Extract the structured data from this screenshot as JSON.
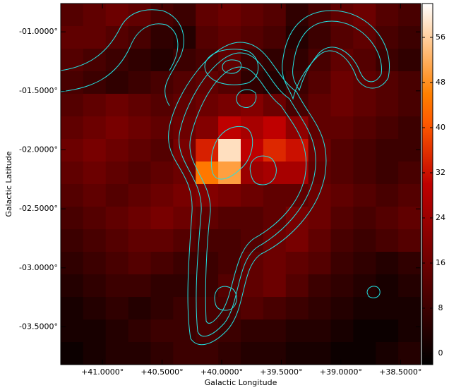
{
  "chart_data": {
    "type": "heatmap",
    "xlabel": "Galactic Longitude",
    "ylabel": "Galactic Latitude",
    "xlim": [
      41.35,
      38.33
    ],
    "ylim": [
      -3.82,
      -0.76
    ],
    "xticks": [
      {
        "value": 41.0,
        "label": "+41.0000°"
      },
      {
        "value": 40.5,
        "label": "+40.5000°"
      },
      {
        "value": 40.0,
        "label": "+40.0000°"
      },
      {
        "value": 39.5,
        "label": "+39.5000°"
      },
      {
        "value": 39.0,
        "label": "+39.0000°"
      },
      {
        "value": 38.5,
        "label": "+38.5000°"
      }
    ],
    "yticks": [
      {
        "value": -1.0,
        "label": "-01.0000°"
      },
      {
        "value": -1.5,
        "label": "-01.5000°"
      },
      {
        "value": -2.0,
        "label": "-02.0000°"
      },
      {
        "value": -2.5,
        "label": "-02.5000°"
      },
      {
        "value": -3.0,
        "label": "-03.0000°"
      },
      {
        "value": -3.5,
        "label": "-03.5000°"
      }
    ],
    "colormap": "gist_heat",
    "clim": [
      -2,
      62
    ],
    "colorbar_ticks": [
      0,
      8,
      16,
      24,
      32,
      40,
      48,
      56
    ],
    "z": [
      [
        12,
        14,
        16,
        14,
        10,
        8,
        14,
        16,
        14,
        12,
        6,
        10,
        14,
        16,
        12,
        10
      ],
      [
        14,
        14,
        12,
        10,
        6,
        4,
        12,
        14,
        12,
        10,
        4,
        8,
        12,
        14,
        10,
        8
      ],
      [
        12,
        10,
        8,
        6,
        4,
        8,
        10,
        14,
        8,
        6,
        6,
        10,
        14,
        12,
        8,
        6
      ],
      [
        10,
        8,
        6,
        8,
        10,
        12,
        14,
        12,
        6,
        4,
        8,
        12,
        16,
        14,
        12,
        10
      ],
      [
        12,
        14,
        16,
        14,
        12,
        14,
        16,
        18,
        20,
        16,
        10,
        14,
        16,
        14,
        12,
        10
      ],
      [
        14,
        16,
        18,
        16,
        14,
        16,
        20,
        30,
        26,
        30,
        22,
        14,
        14,
        12,
        10,
        8
      ],
      [
        16,
        18,
        16,
        14,
        12,
        18,
        34,
        58,
        30,
        35,
        32,
        16,
        12,
        10,
        8,
        8
      ],
      [
        14,
        16,
        14,
        12,
        14,
        16,
        45,
        50,
        24,
        26,
        26,
        14,
        12,
        10,
        8,
        10
      ],
      [
        12,
        14,
        12,
        14,
        16,
        18,
        20,
        18,
        16,
        14,
        14,
        16,
        14,
        12,
        10,
        12
      ],
      [
        10,
        12,
        14,
        16,
        18,
        16,
        14,
        12,
        12,
        14,
        18,
        16,
        12,
        10,
        12,
        14
      ],
      [
        8,
        10,
        12,
        14,
        14,
        12,
        10,
        10,
        12,
        16,
        18,
        14,
        10,
        8,
        10,
        12
      ],
      [
        6,
        8,
        10,
        12,
        10,
        8,
        8,
        10,
        14,
        16,
        14,
        12,
        8,
        6,
        4,
        6
      ],
      [
        4,
        6,
        8,
        8,
        6,
        6,
        8,
        12,
        14,
        16,
        12,
        8,
        6,
        4,
        2,
        4
      ],
      [
        2,
        4,
        6,
        4,
        6,
        8,
        10,
        10,
        12,
        10,
        8,
        6,
        4,
        2,
        2,
        2
      ],
      [
        2,
        2,
        4,
        6,
        8,
        8,
        10,
        8,
        6,
        6,
        4,
        4,
        2,
        0,
        0,
        2
      ],
      [
        0,
        2,
        4,
        4,
        6,
        8,
        8,
        6,
        4,
        4,
        2,
        2,
        0,
        0,
        2,
        4
      ]
    ]
  }
}
